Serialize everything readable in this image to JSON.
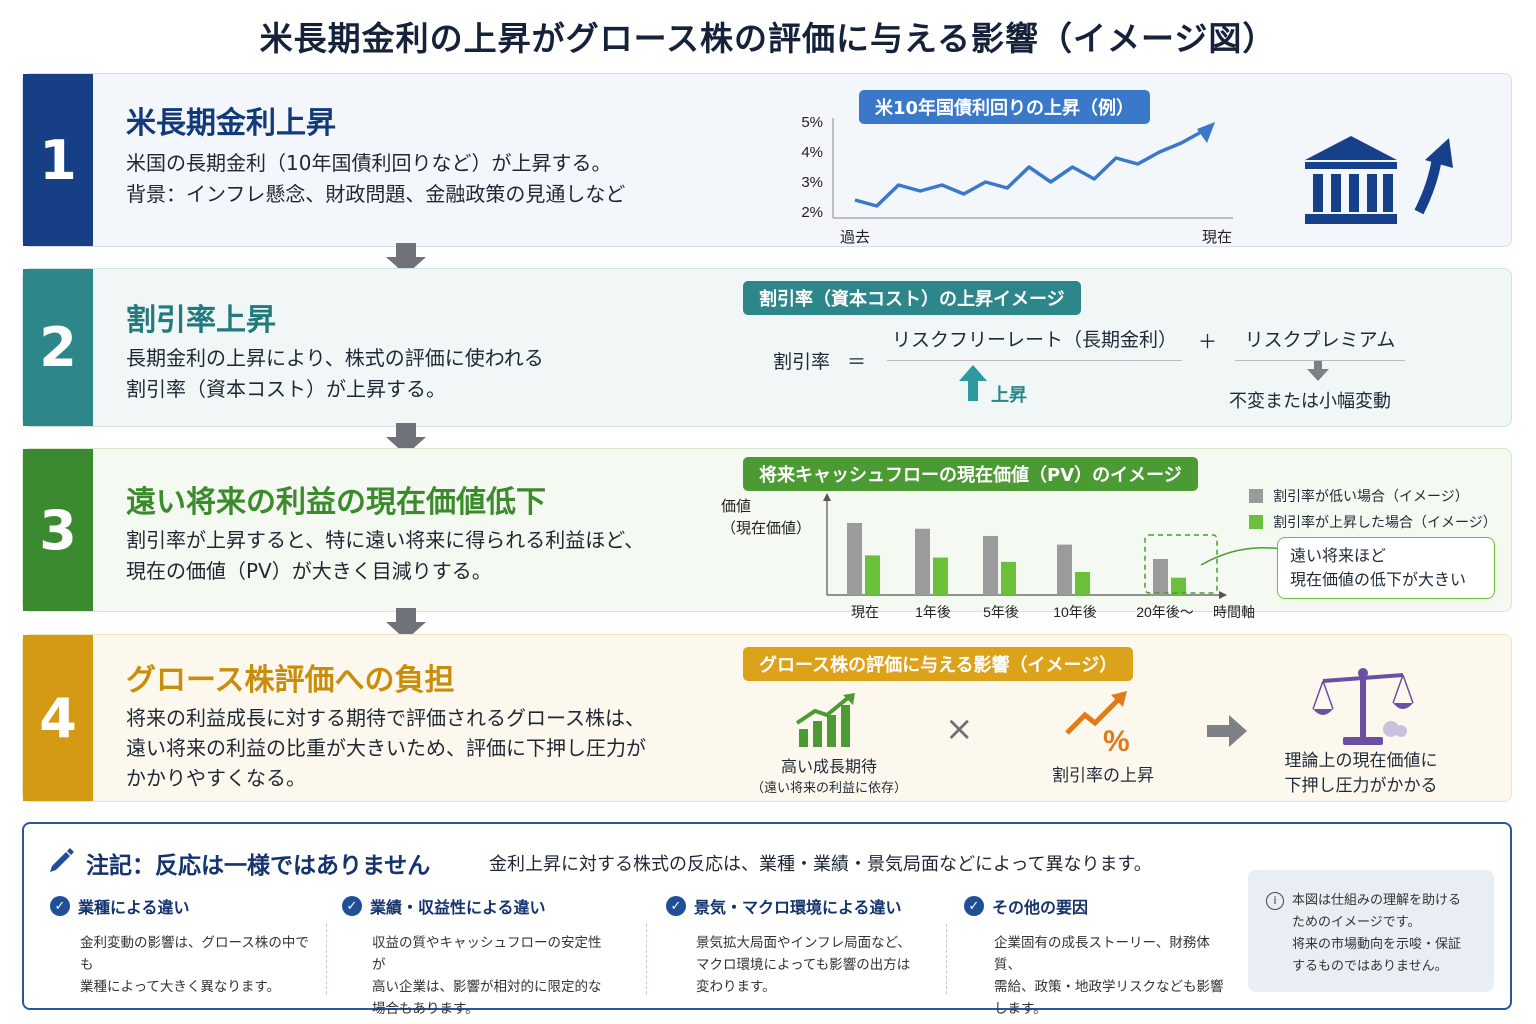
{
  "title": "米長期金利の上昇がグロース株の評価に与える影響（イメージ図）",
  "steps": [
    {
      "number": "1",
      "heading": "米長期金利上昇",
      "lines": [
        "米国の長期金利（10年国債利回りなど）が上昇する。",
        "背景：インフレ懸念、財政問題、金融政策の見通しなど"
      ],
      "chart_title": "米10年国債利回りの上昇（例）",
      "x_start": "過去",
      "x_end": "現在",
      "icons": [
        "bank-icon",
        "arrow-up-icon"
      ]
    },
    {
      "number": "2",
      "heading": "割引率上昇",
      "lines": [
        "長期金利の上昇により、株式の評価に使われる",
        "割引率（資本コスト）が上昇する。"
      ],
      "box_title": "割引率（資本コスト）の上昇イメージ",
      "formula_lhs": "割引率",
      "formula_eq": "＝",
      "term1": "リスクフリーレート（長期金利）",
      "plus": "＋",
      "term2": "リスクプレミアム",
      "term1_note": "上昇",
      "term2_note": "不変または小幅変動"
    },
    {
      "number": "3",
      "heading": "遠い将来の利益の現在価値低下",
      "lines": [
        "割引率が上昇すると、特に遠い将来に得られる利益ほど、",
        "現在の価値（PV）が大きく目減りする。"
      ],
      "chart_title": "将来キャッシュフローの現在価値（PV）のイメージ",
      "y_label_1": "価値",
      "y_label_2": "（現在価値）",
      "x_axis_label": "時間軸",
      "callout_1": "遠い将来ほど",
      "callout_2": "現在価値の低下が大きい"
    },
    {
      "number": "4",
      "heading": "グロース株評価への負担",
      "lines": [
        "将来の利益成長に対する期待で評価されるグロース株は、",
        "遠い将来の利益の比重が大きいため、評価に下押し圧力が",
        "かかりやすくなる。"
      ],
      "box_title": "グロース株の評価に与える影響（イメージ）",
      "item1_1": "高い成長期待",
      "item1_2": "（遠い将来の利益に依存）",
      "times": "×",
      "item2": "割引率の上昇",
      "result_1": "理論上の現在価値に",
      "result_2": "下押し圧力がかかる"
    }
  ],
  "chart_data": [
    {
      "type": "line",
      "title": "米10年国債利回りの上昇（例）",
      "yticks": [
        "5%",
        "4%",
        "3%",
        "2%"
      ],
      "ylim": [
        2,
        5
      ],
      "x_labels": [
        "過去",
        "現在"
      ],
      "values": [
        2.4,
        2.2,
        2.9,
        2.7,
        2.9,
        2.6,
        3.0,
        2.8,
        3.5,
        3.0,
        3.5,
        3.1,
        3.8,
        3.6,
        4.0,
        4.3,
        4.7
      ]
    },
    {
      "type": "bar",
      "title": "将来キャッシュフローの現在価値（PV）のイメージ",
      "categories": [
        "現在",
        "1年後",
        "5年後",
        "10年後",
        "20年後～"
      ],
      "series": [
        {
          "name": "割引率が低い場合（イメージ）",
          "color": "#9b9b9b",
          "values": [
            100,
            92,
            82,
            70,
            50
          ]
        },
        {
          "name": "割引率が上昇した場合（イメージ）",
          "color": "#6cbf3b",
          "values": [
            55,
            52,
            46,
            32,
            24
          ]
        }
      ],
      "xlabel": "時間軸",
      "ylabel": "価値（現在価値）",
      "highlight_category": "20年後～"
    }
  ],
  "note": {
    "title": "注記：反応は一様ではありません",
    "subtitle": "金利上昇に対する株式の反応は、業種・業績・景気局面などによって異なります。",
    "columns": [
      {
        "heading": "業種による違い",
        "body": [
          "金利変動の影響は、グロース株の中でも",
          "業種によって大きく異なります。"
        ]
      },
      {
        "heading": "業績・収益性による違い",
        "body": [
          "収益の質やキャッシュフローの安定性が",
          "高い企業は、影響が相対的に限定的な",
          "場合もあります。"
        ]
      },
      {
        "heading": "景気・マクロ環境による違い",
        "body": [
          "景気拡大局面やインフレ局面など、",
          "マクロ環境によっても影響の出方は",
          "変わります。"
        ]
      },
      {
        "heading": "その他の要因",
        "body": [
          "企業固有の成長ストーリー、財務体質、",
          "需給、政策・地政学リスクなども影響",
          "します。"
        ]
      }
    ],
    "disclaimer": [
      "本図は仕組みの理解を助ける",
      "ためのイメージです。",
      "将来の市場動向を示唆・保証",
      "するものではありません。"
    ]
  },
  "colors": {
    "step1": "#163f86",
    "step2": "#2d878a",
    "step3": "#3c8a2f",
    "step4": "#d49a14",
    "line": "#3a78c9"
  }
}
